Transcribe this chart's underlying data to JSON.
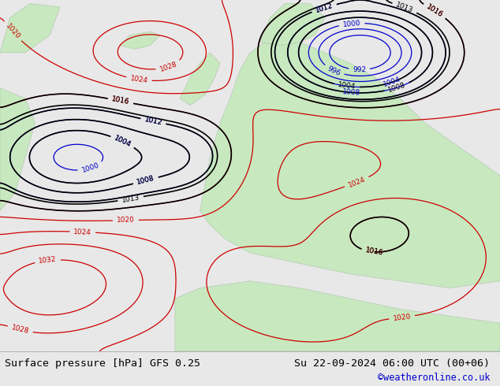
{
  "title_left": "Surface pressure [hPa] GFS 0.25",
  "title_right": "Su 22-09-2024 06:00 UTC (00+06)",
  "credit": "©weatheronline.co.uk",
  "credit_color": "#0000cc",
  "bg_color": "#e8e8e8",
  "map_bg_ocean": "#d8e8f8",
  "map_bg_land": "#c8e8c0",
  "fig_width": 6.34,
  "fig_height": 4.9,
  "bottom_bar_color": "#e0e0e0",
  "text_color": "#000000",
  "isobar_red_color": "#cc0000",
  "isobar_blue_color": "#0000cc",
  "isobar_black_color": "#000000"
}
